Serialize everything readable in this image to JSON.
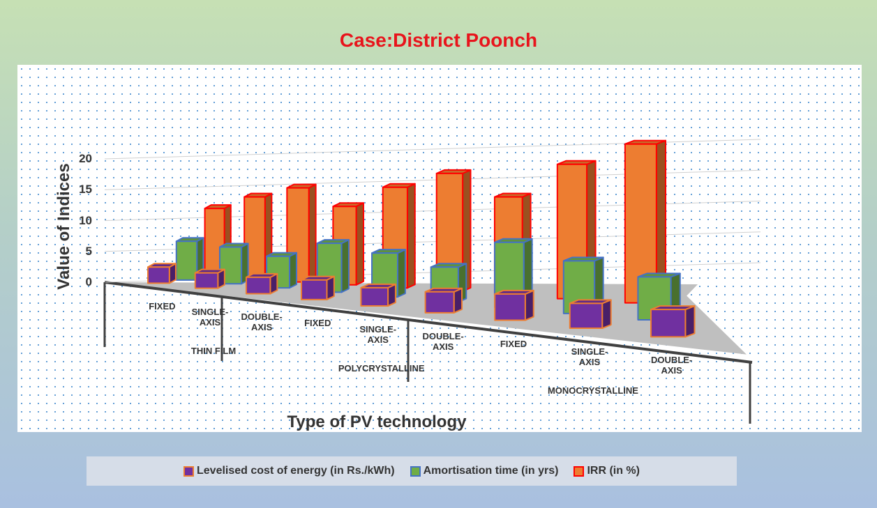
{
  "chart_data": {
    "type": "bar3d",
    "title": "Case:District Poonch",
    "y_axis_label": "Value of Indices",
    "x_axis_label": "Type of PV technology",
    "groups": [
      {
        "name": "THIN FILM",
        "categories": [
          "FIXED",
          "SINGLE-AXIS",
          "DOUBLE-AXIS"
        ]
      },
      {
        "name": "POLYCRYSTALLINE",
        "categories": [
          "FIXED",
          "SINGLE-AXIS",
          "DOUBLE-AXIS"
        ]
      },
      {
        "name": "MONOCRYSTALLINE",
        "categories": [
          "FIXED",
          "SINGLE-AXIS",
          "DOUBLE-AXIS"
        ]
      }
    ],
    "series": [
      {
        "name": "Levelised cost of energy (in Rs./kWh)",
        "color": "#7030a0",
        "edge": "#ed7d31",
        "values": [
          2.6,
          2.4,
          2.5,
          2.9,
          2.6,
          2.9,
          3.5,
          3.2,
          3.4
        ]
      },
      {
        "name": "Amortisation time (in yrs)",
        "color": "#70ad47",
        "edge": "#4472c4",
        "values": [
          6.5,
          6,
          5,
          7.5,
          6.5,
          5,
          9,
          7,
          5.5
        ]
      },
      {
        "name": "IRR (in %)",
        "color": "#ed7d31",
        "edge": "#ff0000",
        "values": [
          12,
          14,
          15.5,
          12.5,
          15.5,
          17.5,
          14,
          18.5,
          21
        ]
      }
    ],
    "ylim": [
      0,
      20
    ],
    "yticks": [
      0,
      5,
      10,
      15,
      20
    ],
    "grid": true
  }
}
